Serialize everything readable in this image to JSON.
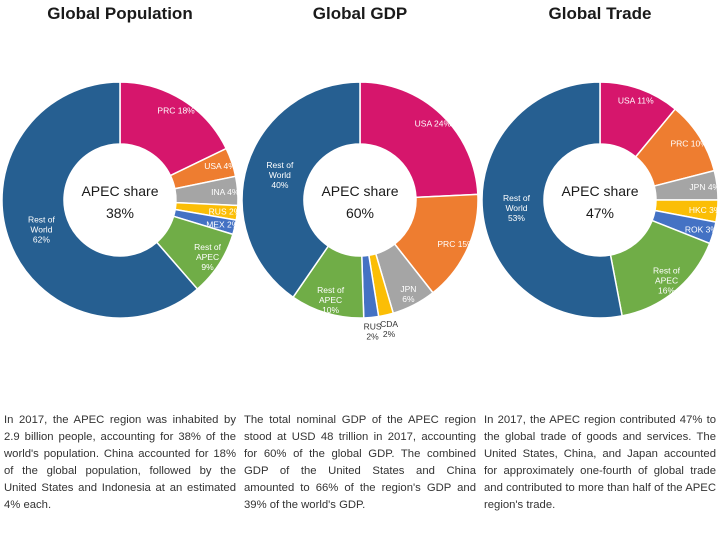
{
  "chart_data": [
    {
      "type": "pie",
      "variant": "donut",
      "title": "Global Population",
      "center_label": [
        "APEC share",
        "38%"
      ],
      "segments": [
        {
          "label": [
            "PRC 18%"
          ],
          "value": 18,
          "color": "#d6166c"
        },
        {
          "label": [
            "USA 4%"
          ],
          "value": 4,
          "color": "#ee7d30"
        },
        {
          "label": [
            "INA 4%"
          ],
          "value": 4,
          "color": "#a5a5a5"
        },
        {
          "label": [
            "RUS 2%"
          ],
          "value": 2,
          "color": "#fbbe06"
        },
        {
          "label": [
            "MEX 2%"
          ],
          "value": 2,
          "color": "#4472c4"
        },
        {
          "label": [
            "Rest of",
            "APEC",
            "9%"
          ],
          "value": 9,
          "color": "#70ad47"
        },
        {
          "label": [
            "Rest of",
            "World",
            "62%"
          ],
          "value": 62,
          "color": "#265f91"
        }
      ],
      "description": "In 2017, the APEC region was inhabited by 2.9 billion people, accounting for 38% of the world's population. China accounted for 18% of the global population, followed by the United States and Indonesia at an estimated 4% each."
    },
    {
      "type": "pie",
      "variant": "donut",
      "title": "Global GDP",
      "center_label": [
        "APEC share",
        "60%"
      ],
      "segments": [
        {
          "label": [
            "USA 24%"
          ],
          "value": 24,
          "color": "#d6166c"
        },
        {
          "label": [
            "PRC 15%"
          ],
          "value": 15,
          "color": "#ee7d30"
        },
        {
          "label": [
            "JPN",
            "6%"
          ],
          "value": 6,
          "color": "#a5a5a5"
        },
        {
          "label": [
            "CDA",
            "2%"
          ],
          "value": 2,
          "color": "#fbbe06"
        },
        {
          "label": [
            "RUS",
            "2%"
          ],
          "value": 2,
          "color": "#4472c4"
        },
        {
          "label": [
            "Rest of",
            "APEC",
            "10%"
          ],
          "value": 10,
          "color": "#70ad47"
        },
        {
          "label": [
            "Rest of",
            "World",
            "40%"
          ],
          "value": 40,
          "color": "#265f91"
        }
      ],
      "description": "The total nominal GDP of the APEC region stood at USD 48 trillion in 2017, accounting for 60% of the global GDP. The combined GDP of the United States and China amounted to 66% of the region's GDP and 39% of the world's GDP."
    },
    {
      "type": "pie",
      "variant": "donut",
      "title": "Global Trade",
      "center_label": [
        "APEC share",
        "47%"
      ],
      "segments": [
        {
          "label": [
            "USA 11%"
          ],
          "value": 11,
          "color": "#d6166c"
        },
        {
          "label": [
            "PRC 10%"
          ],
          "value": 10,
          "color": "#ee7d30"
        },
        {
          "label": [
            "JPN 4%"
          ],
          "value": 4,
          "color": "#a5a5a5"
        },
        {
          "label": [
            "HKC 3%"
          ],
          "value": 3,
          "color": "#fbbe06"
        },
        {
          "label": [
            "ROK 3%"
          ],
          "value": 3,
          "color": "#4472c4"
        },
        {
          "label": [
            "Rest of",
            "APEC",
            "16%"
          ],
          "value": 16,
          "color": "#70ad47"
        },
        {
          "label": [
            "Rest of",
            "World",
            "53%"
          ],
          "value": 53,
          "color": "#265f91"
        }
      ],
      "description": "In 2017, the APEC region contributed 47% to the global trade of goods and services. The United States, China, and Japan accounted for approximately one-fourth of global trade and contributed to more than half of the APEC region's trade."
    }
  ]
}
